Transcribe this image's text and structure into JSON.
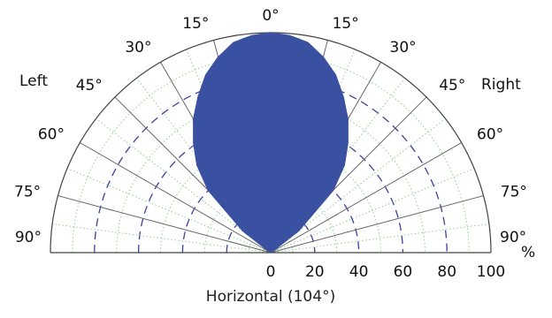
{
  "chart_data": {
    "type": "polar-area",
    "caption": "Horizontal (104°)",
    "side_labels": {
      "left": "Left",
      "right": "Right"
    },
    "angle_ticks": [
      {
        "angle": -90,
        "label": "90°"
      },
      {
        "angle": -75,
        "label": "75°"
      },
      {
        "angle": -60,
        "label": "60°"
      },
      {
        "angle": -45,
        "label": "45°"
      },
      {
        "angle": -30,
        "label": "30°"
      },
      {
        "angle": -15,
        "label": "15°"
      },
      {
        "angle": 0,
        "label": "0°"
      },
      {
        "angle": 15,
        "label": "15°"
      },
      {
        "angle": 30,
        "label": "30°"
      },
      {
        "angle": 45,
        "label": "45°"
      },
      {
        "angle": 60,
        "label": "60°"
      },
      {
        "angle": 75,
        "label": "75°"
      },
      {
        "angle": 90,
        "label": "90°"
      }
    ],
    "radial_ticks": [
      {
        "value": 0,
        "label": "0"
      },
      {
        "value": 20,
        "label": "20"
      },
      {
        "value": 40,
        "label": "40"
      },
      {
        "value": 60,
        "label": "60"
      },
      {
        "value": 80,
        "label": "80"
      },
      {
        "value": 100,
        "label": "100"
      }
    ],
    "radial_unit": "%",
    "r_range": [
      0,
      100
    ],
    "dashed_circles": [
      20,
      40,
      60,
      80
    ],
    "dotted_circles": [
      10,
      30,
      50,
      70,
      90
    ],
    "fill_color": "#3a50a1",
    "grid_color": "#666666",
    "dashed_color": "#3f3f9e",
    "dotted_color": "#8fcf8f",
    "series": [
      {
        "angles": [
          -90,
          -60,
          -52,
          -45,
          -40,
          -35,
          -30,
          -25,
          -20,
          -15,
          -10,
          -5,
          0,
          5,
          10,
          15,
          20,
          25,
          30,
          35,
          40,
          45,
          52,
          60,
          90
        ],
        "values": [
          0,
          0,
          16,
          40,
          52,
          61,
          70,
          78,
          86,
          92,
          97,
          99,
          100,
          99,
          97,
          92,
          86,
          78,
          70,
          61,
          52,
          40,
          16,
          0,
          0
        ]
      }
    ]
  }
}
